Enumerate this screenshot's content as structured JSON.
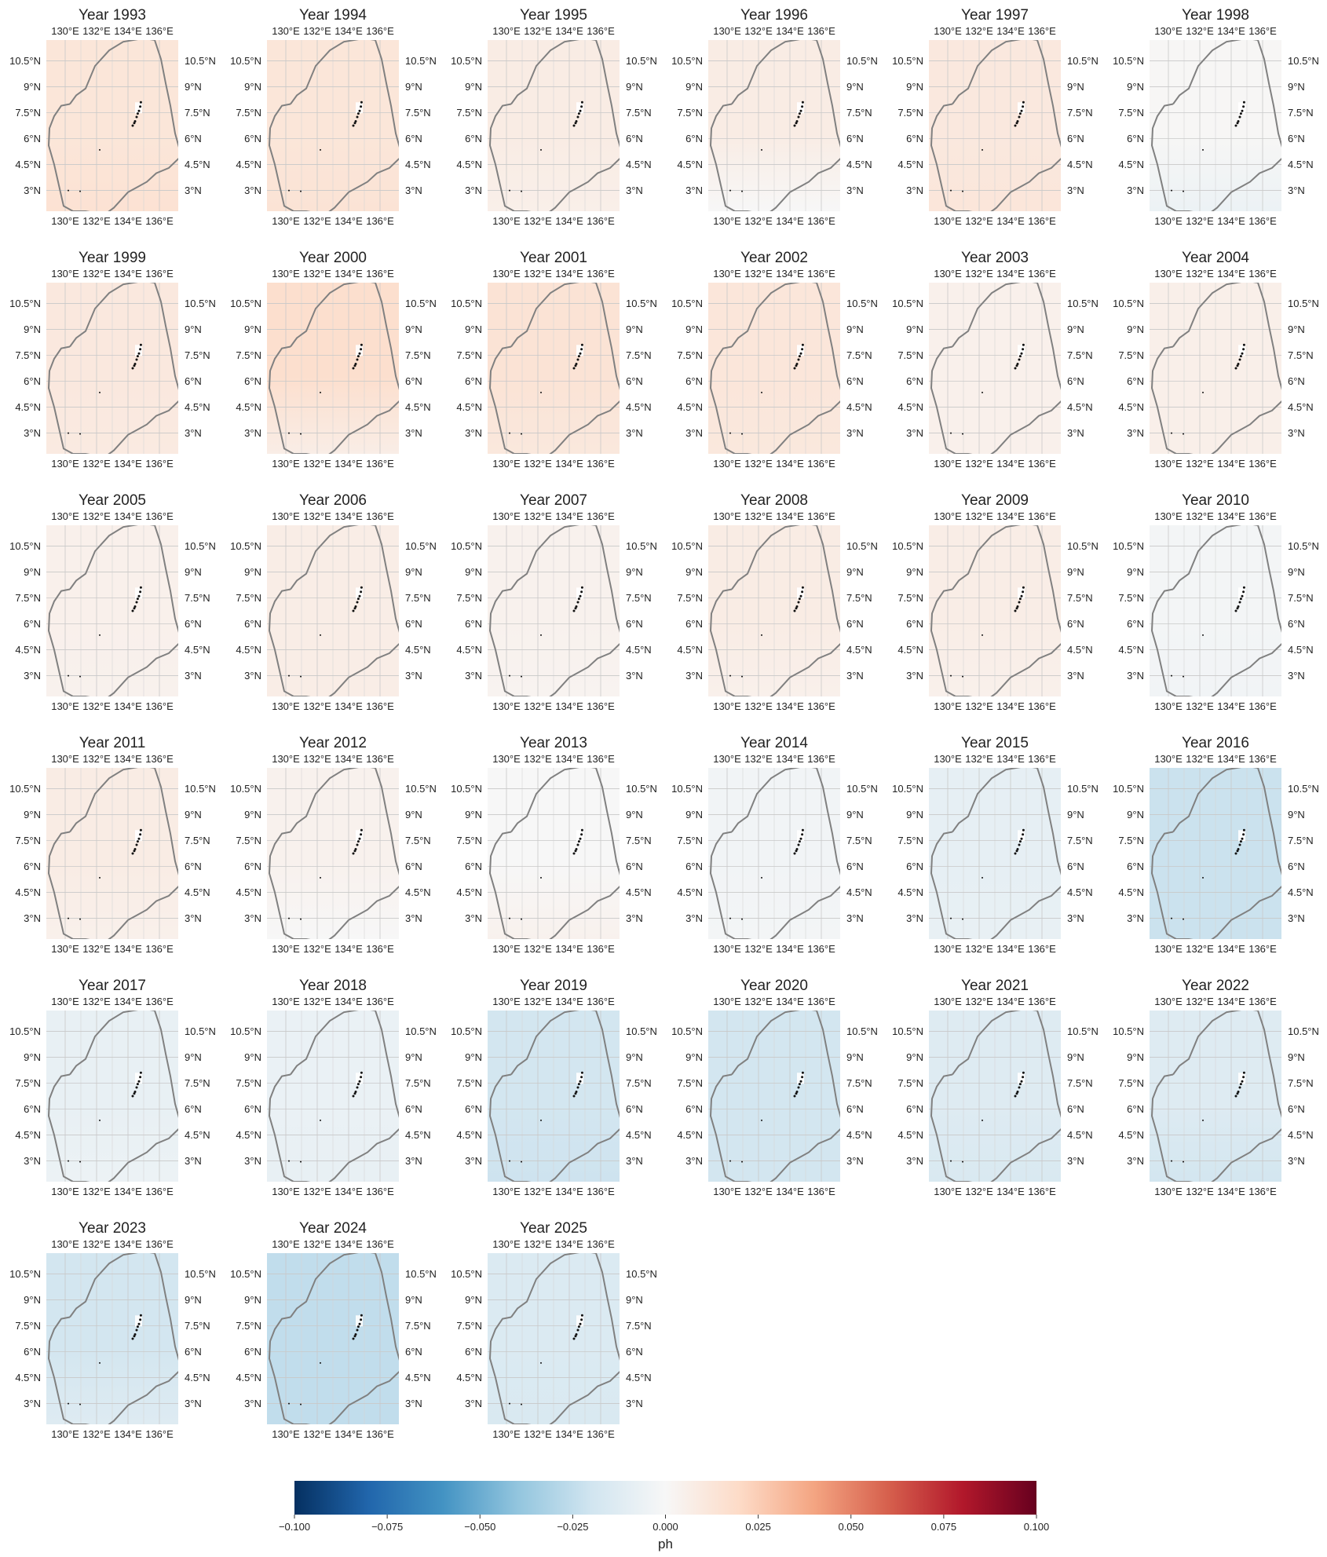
{
  "chart_data": {
    "type": "heatmap",
    "variable_label": "ph",
    "colormap": "RdBu_r",
    "color_range": [
      -0.1,
      0.1
    ],
    "colorbar_ticks": [
      "−0.100",
      "−0.075",
      "−0.050",
      "−0.025",
      "0.000",
      "0.025",
      "0.050",
      "0.075",
      "0.100"
    ],
    "colorbar_tick_values": [
      -0.1,
      -0.075,
      -0.05,
      -0.025,
      0.0,
      0.025,
      0.05,
      0.075,
      0.1
    ],
    "colorbar_stops": [
      "#053061",
      "#2166ac",
      "#4393c3",
      "#92c5de",
      "#d1e5f0",
      "#f7f7f7",
      "#fddbc7",
      "#f4a582",
      "#d6604d",
      "#b2182b",
      "#67001f"
    ],
    "grid": true,
    "colorbar_placement": "bottom",
    "lon_ticks": [
      "130°E",
      "132°E",
      "134°E",
      "136°E"
    ],
    "lon_tick_values": [
      130,
      132,
      134,
      136
    ],
    "lat_ticks": [
      "3°N",
      "4.5°N",
      "6°N",
      "7.5°N",
      "9°N",
      "10.5°N"
    ],
    "lat_tick_values": [
      3,
      4.5,
      6,
      7.5,
      9,
      10.5
    ],
    "lon_range": [
      128.8,
      137.2
    ],
    "lat_range": [
      1.8,
      11.7
    ],
    "panels": [
      {
        "title": "Year 1993",
        "value": 0.0125,
        "south_value": 0.015
      },
      {
        "title": "Year 1994",
        "value": 0.0125,
        "south_value": 0.014
      },
      {
        "title": "Year 1995",
        "value": 0.008,
        "south_value": 0.006
      },
      {
        "title": "Year 1996",
        "value": 0.008,
        "south_value": 0.0
      },
      {
        "title": "Year 1997",
        "value": 0.0105,
        "south_value": 0.012
      },
      {
        "title": "Year 1998",
        "value": 0.001,
        "south_value": -0.006
      },
      {
        "title": "Year 1999",
        "value": 0.0105,
        "south_value": 0.009
      },
      {
        "title": "Year 2000",
        "value": 0.017,
        "south_value": 0.007
      },
      {
        "title": "Year 2001",
        "value": 0.014,
        "south_value": 0.011
      },
      {
        "title": "Year 2002",
        "value": 0.012,
        "south_value": 0.011
      },
      {
        "title": "Year 2003",
        "value": 0.005,
        "south_value": 0.005
      },
      {
        "title": "Year 2004",
        "value": 0.006,
        "south_value": 0.006
      },
      {
        "title": "Year 2005",
        "value": 0.005,
        "south_value": 0.004
      },
      {
        "title": "Year 2006",
        "value": 0.007,
        "south_value": 0.007
      },
      {
        "title": "Year 2007",
        "value": 0.004,
        "south_value": 0.003
      },
      {
        "title": "Year 2008",
        "value": 0.008,
        "south_value": 0.005
      },
      {
        "title": "Year 2009",
        "value": 0.007,
        "south_value": 0.005
      },
      {
        "title": "Year 2010",
        "value": -0.002,
        "south_value": -0.003
      },
      {
        "title": "Year 2011",
        "value": 0.008,
        "south_value": 0.005
      },
      {
        "title": "Year 2012",
        "value": 0.004,
        "south_value": 0.0
      },
      {
        "title": "Year 2013",
        "value": 0.0,
        "south_value": 0.004
      },
      {
        "title": "Year 2014",
        "value": -0.003,
        "south_value": -0.002
      },
      {
        "title": "Year 2015",
        "value": -0.009,
        "south_value": -0.008
      },
      {
        "title": "Year 2016",
        "value": -0.022,
        "south_value": -0.022
      },
      {
        "title": "Year 2017",
        "value": -0.008,
        "south_value": -0.006
      },
      {
        "title": "Year 2018",
        "value": -0.007,
        "south_value": -0.008
      },
      {
        "title": "Year 2019",
        "value": -0.019,
        "south_value": -0.021
      },
      {
        "title": "Year 2020",
        "value": -0.019,
        "south_value": -0.019
      },
      {
        "title": "Year 2021",
        "value": -0.013,
        "south_value": -0.016
      },
      {
        "title": "Year 2022",
        "value": -0.013,
        "south_value": -0.019
      },
      {
        "title": "Year 2023",
        "value": -0.019,
        "south_value": -0.013
      },
      {
        "title": "Year 2024",
        "value": -0.025,
        "south_value": -0.025
      },
      {
        "title": "Year 2025",
        "value": -0.015,
        "south_value": -0.016
      }
    ]
  }
}
